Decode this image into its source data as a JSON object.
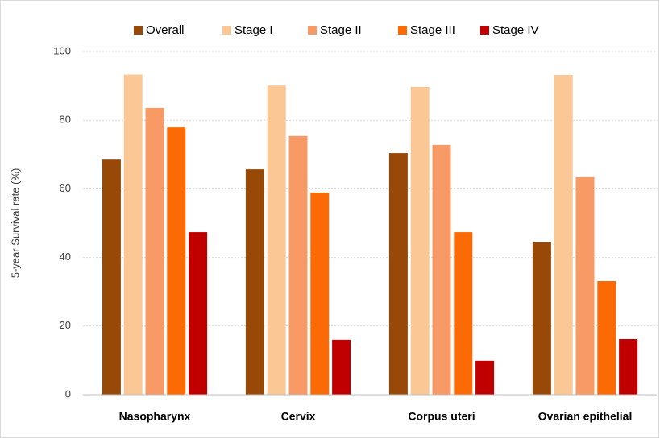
{
  "chart_data": {
    "type": "bar",
    "y_axis_label": "5-year Survival rate (%)",
    "categories": [
      "Nasopharynx",
      "Cervix",
      "Corpus uteri",
      "Ovarian epithelial"
    ],
    "series": [
      {
        "name": "Overall",
        "color": "#984807",
        "values": [
          68.5,
          65.7,
          70.4,
          44.4
        ]
      },
      {
        "name": "Stage I",
        "color": "#fbc795",
        "values": [
          93.3,
          90.1,
          89.7,
          93.2
        ]
      },
      {
        "name": "Stage II",
        "color": "#f79a65",
        "values": [
          83.6,
          75.4,
          72.8,
          63.4
        ]
      },
      {
        "name": "Stage III",
        "color": "#fb6a04",
        "values": [
          77.9,
          58.9,
          47.4,
          33.1
        ]
      },
      {
        "name": "Stage IV",
        "color": "#c00000",
        "values": [
          47.4,
          16.0,
          9.9,
          16.2
        ]
      }
    ],
    "ylim": [
      0,
      100
    ],
    "yticks": [
      0,
      20,
      40,
      60,
      80,
      100
    ],
    "grid": true,
    "legend": "top"
  }
}
